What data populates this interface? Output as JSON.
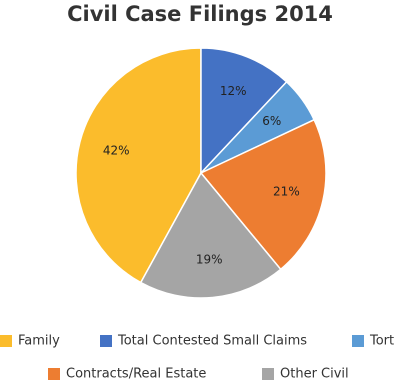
{
  "chart_data": {
    "type": "pie",
    "title": "Civil Case Filings 2014",
    "categories": [
      "Family",
      "Total Contested Small Claims",
      "Tort",
      "Contracts/Real Estate",
      "Other Civil"
    ],
    "values": [
      42,
      12,
      6,
      21,
      19
    ],
    "value_labels": [
      "42%",
      "12%",
      "6%",
      "21%",
      "19%"
    ],
    "colors": [
      "#fbbc2c",
      "#4472c4",
      "#5b9bd5",
      "#ed7d31",
      "#a5a5a5"
    ],
    "legend": "bottom"
  }
}
